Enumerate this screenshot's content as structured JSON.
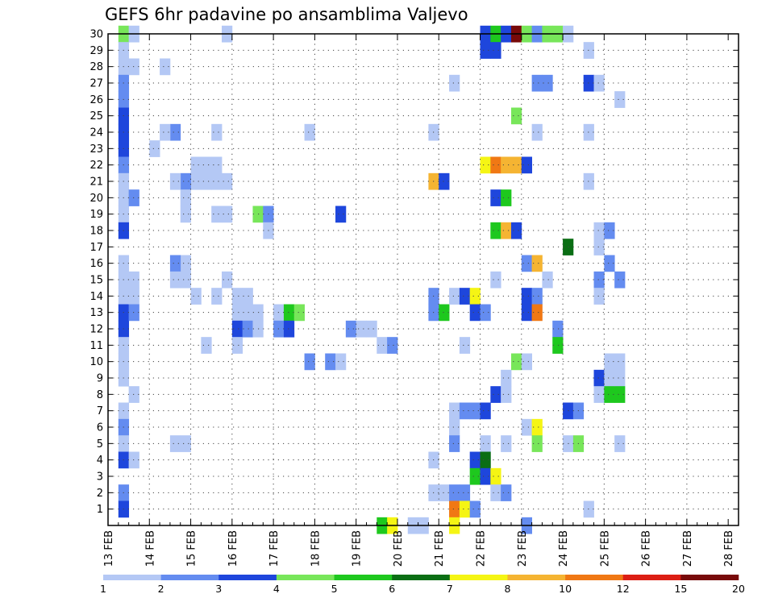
{
  "chart_data": {
    "type": "heatmap",
    "title": "GEFS 6hr padavine po ansamblima Valjevo",
    "xlabel": "",
    "ylabel": "",
    "x_tick_labels": [
      "13 FEB",
      "14 FEB",
      "15 FEB",
      "16 FEB",
      "17 FEB",
      "18 FEB",
      "19 FEB",
      "20 FEB",
      "21 FEB",
      "22 FEB",
      "23 FEB",
      "24 FEB",
      "25 FEB",
      "26 FEB",
      "27 FEB",
      "28 FEB"
    ],
    "x_range_steps": [
      0,
      60
    ],
    "x_step_hours": 6,
    "y_tick_labels": [
      "1",
      "2",
      "3",
      "4",
      "5",
      "6",
      "7",
      "8",
      "9",
      "10",
      "11",
      "12",
      "13",
      "14",
      "15",
      "16",
      "17",
      "18",
      "19",
      "20",
      "21",
      "22",
      "23",
      "24",
      "25",
      "26",
      "27",
      "28",
      "29",
      "30"
    ],
    "y_range": [
      0,
      30
    ],
    "grid": true,
    "colorbar": {
      "labels": [
        "1",
        "2",
        "3",
        "4",
        "5",
        "6",
        "7",
        "8",
        "10",
        "12",
        "15",
        "20"
      ],
      "colors": [
        "#b4c8f5",
        "#648cf0",
        "#1e46dc",
        "#78e65a",
        "#1ec81e",
        "#0a6e14",
        "#f5f514",
        "#f5b432",
        "#f07814",
        "#dc1e14",
        "#780a0a"
      ]
    },
    "cells": [
      [
        1,
        30,
        3
      ],
      [
        1,
        29,
        0
      ],
      [
        1,
        28,
        0
      ],
      [
        1,
        27,
        1
      ],
      [
        1,
        26,
        1
      ],
      [
        1,
        25,
        2
      ],
      [
        1,
        24,
        2
      ],
      [
        1,
        23,
        2
      ],
      [
        1,
        22,
        1
      ],
      [
        1,
        21,
        0
      ],
      [
        1,
        20,
        0
      ],
      [
        1,
        19,
        0
      ],
      [
        1,
        18,
        2
      ],
      [
        1,
        16,
        0
      ],
      [
        1,
        15,
        0
      ],
      [
        1,
        14,
        0
      ],
      [
        1,
        13,
        2
      ],
      [
        1,
        12,
        2
      ],
      [
        1,
        11,
        0
      ],
      [
        1,
        10,
        0
      ],
      [
        1,
        9,
        0
      ],
      [
        1,
        7,
        0
      ],
      [
        1,
        6,
        1
      ],
      [
        1,
        5,
        0
      ],
      [
        1,
        4,
        2
      ],
      [
        1,
        2,
        1
      ],
      [
        1,
        1,
        2
      ],
      [
        2,
        30,
        0
      ],
      [
        2,
        28,
        0
      ],
      [
        2,
        20,
        1
      ],
      [
        2,
        15,
        0
      ],
      [
        2,
        14,
        0
      ],
      [
        2,
        13,
        1
      ],
      [
        2,
        8,
        0
      ],
      [
        2,
        4,
        0
      ],
      [
        11,
        30,
        0
      ],
      [
        11,
        21,
        0
      ],
      [
        11,
        19,
        0
      ],
      [
        11,
        15,
        0
      ],
      [
        10,
        24,
        0
      ],
      [
        10,
        22,
        0
      ],
      [
        10,
        21,
        0
      ],
      [
        10,
        19,
        0
      ],
      [
        10,
        14,
        0
      ],
      [
        9,
        22,
        0
      ],
      [
        9,
        21,
        0
      ],
      [
        9,
        11,
        0
      ],
      [
        8,
        22,
        0
      ],
      [
        8,
        21,
        0
      ],
      [
        8,
        14,
        0
      ],
      [
        7,
        21,
        1
      ],
      [
        7,
        20,
        0
      ],
      [
        7,
        19,
        0
      ],
      [
        7,
        16,
        0
      ],
      [
        7,
        15,
        0
      ],
      [
        7,
        5,
        0
      ],
      [
        6,
        24,
        1
      ],
      [
        6,
        21,
        0
      ],
      [
        6,
        16,
        1
      ],
      [
        6,
        15,
        0
      ],
      [
        6,
        5,
        0
      ],
      [
        5,
        28,
        0
      ],
      [
        5,
        24,
        0
      ],
      [
        4,
        23,
        0
      ],
      [
        12,
        14,
        0
      ],
      [
        12,
        13,
        0
      ],
      [
        12,
        12,
        2
      ],
      [
        12,
        11,
        0
      ],
      [
        13,
        14,
        0
      ],
      [
        13,
        13,
        0
      ],
      [
        13,
        12,
        1
      ],
      [
        14,
        19,
        3
      ],
      [
        14,
        13,
        0
      ],
      [
        14,
        12,
        0
      ],
      [
        15,
        19,
        1
      ],
      [
        15,
        18,
        0
      ],
      [
        16,
        13,
        0
      ],
      [
        16,
        12,
        1
      ],
      [
        17,
        13,
        4
      ],
      [
        17,
        12,
        2
      ],
      [
        18,
        13,
        3
      ],
      [
        19,
        24,
        0
      ],
      [
        19,
        10,
        1
      ],
      [
        21,
        10,
        1
      ],
      [
        22,
        19,
        2
      ],
      [
        22,
        10,
        0
      ],
      [
        23,
        12,
        1
      ],
      [
        24,
        12,
        0
      ],
      [
        25,
        12,
        0
      ],
      [
        26,
        11,
        0
      ],
      [
        26,
        0,
        4
      ],
      [
        27,
        11,
        1
      ],
      [
        27,
        0,
        6
      ],
      [
        29,
        0,
        0
      ],
      [
        30,
        0,
        0
      ],
      [
        31,
        24,
        0
      ],
      [
        31,
        21,
        7
      ],
      [
        31,
        14,
        1
      ],
      [
        31,
        13,
        1
      ],
      [
        31,
        4,
        0
      ],
      [
        31,
        2,
        0
      ],
      [
        32,
        21,
        2
      ],
      [
        32,
        13,
        4
      ],
      [
        32,
        2,
        0
      ],
      [
        33,
        27,
        0
      ],
      [
        33,
        14,
        0
      ],
      [
        33,
        7,
        0
      ],
      [
        33,
        6,
        0
      ],
      [
        33,
        5,
        1
      ],
      [
        33,
        2,
        1
      ],
      [
        33,
        1,
        8
      ],
      [
        33,
        0,
        6
      ],
      [
        34,
        14,
        2
      ],
      [
        34,
        11,
        0
      ],
      [
        34,
        7,
        1
      ],
      [
        34,
        2,
        1
      ],
      [
        34,
        1,
        6
      ],
      [
        35,
        14,
        6
      ],
      [
        35,
        13,
        2
      ],
      [
        35,
        7,
        1
      ],
      [
        35,
        4,
        2
      ],
      [
        35,
        3,
        4
      ],
      [
        35,
        1,
        1
      ],
      [
        36,
        30,
        2
      ],
      [
        36,
        29,
        2
      ],
      [
        36,
        22,
        6
      ],
      [
        36,
        13,
        1
      ],
      [
        36,
        7,
        2
      ],
      [
        36,
        5,
        0
      ],
      [
        36,
        4,
        5
      ],
      [
        36,
        3,
        2
      ],
      [
        37,
        30,
        4
      ],
      [
        37,
        29,
        2
      ],
      [
        37,
        22,
        8
      ],
      [
        37,
        20,
        2
      ],
      [
        37,
        18,
        4
      ],
      [
        37,
        15,
        0
      ],
      [
        37,
        8,
        2
      ],
      [
        37,
        3,
        6
      ],
      [
        37,
        2,
        0
      ],
      [
        38,
        30,
        2
      ],
      [
        38,
        22,
        7
      ],
      [
        38,
        20,
        4
      ],
      [
        38,
        18,
        7
      ],
      [
        38,
        9,
        0
      ],
      [
        38,
        8,
        0
      ],
      [
        38,
        5,
        0
      ],
      [
        38,
        2,
        1
      ],
      [
        39,
        30,
        10
      ],
      [
        39,
        25,
        3
      ],
      [
        39,
        22,
        7
      ],
      [
        39,
        18,
        2
      ],
      [
        39,
        10,
        3
      ],
      [
        40,
        30,
        3
      ],
      [
        40,
        22,
        2
      ],
      [
        40,
        16,
        1
      ],
      [
        40,
        14,
        2
      ],
      [
        40,
        13,
        2
      ],
      [
        40,
        10,
        0
      ],
      [
        40,
        6,
        0
      ],
      [
        40,
        0,
        1
      ],
      [
        41,
        30,
        1
      ],
      [
        41,
        27,
        1
      ],
      [
        41,
        24,
        0
      ],
      [
        41,
        16,
        7
      ],
      [
        41,
        14,
        1
      ],
      [
        41,
        13,
        8
      ],
      [
        41,
        6,
        6
      ],
      [
        41,
        5,
        3
      ],
      [
        42,
        30,
        3
      ],
      [
        42,
        27,
        1
      ],
      [
        42,
        15,
        0
      ],
      [
        43,
        30,
        3
      ],
      [
        43,
        12,
        1
      ],
      [
        43,
        11,
        4
      ],
      [
        44,
        30,
        0
      ],
      [
        44,
        17,
        5
      ],
      [
        44,
        7,
        2
      ],
      [
        44,
        5,
        0
      ],
      [
        45,
        7,
        1
      ],
      [
        45,
        5,
        3
      ],
      [
        46,
        27,
        2
      ],
      [
        46,
        24,
        0
      ],
      [
        46,
        21,
        0
      ],
      [
        46,
        1,
        0
      ],
      [
        46,
        29,
        0
      ],
      [
        47,
        27,
        0
      ],
      [
        47,
        18,
        0
      ],
      [
        47,
        17,
        0
      ],
      [
        47,
        15,
        1
      ],
      [
        47,
        14,
        0
      ],
      [
        47,
        9,
        2
      ],
      [
        47,
        8,
        0
      ],
      [
        48,
        18,
        1
      ],
      [
        48,
        16,
        1
      ],
      [
        48,
        10,
        0
      ],
      [
        48,
        9,
        0
      ],
      [
        48,
        8,
        4
      ],
      [
        49,
        26,
        0
      ],
      [
        49,
        15,
        1
      ],
      [
        49,
        10,
        0
      ],
      [
        49,
        9,
        0
      ],
      [
        49,
        8,
        4
      ],
      [
        49,
        5,
        0
      ]
    ]
  }
}
